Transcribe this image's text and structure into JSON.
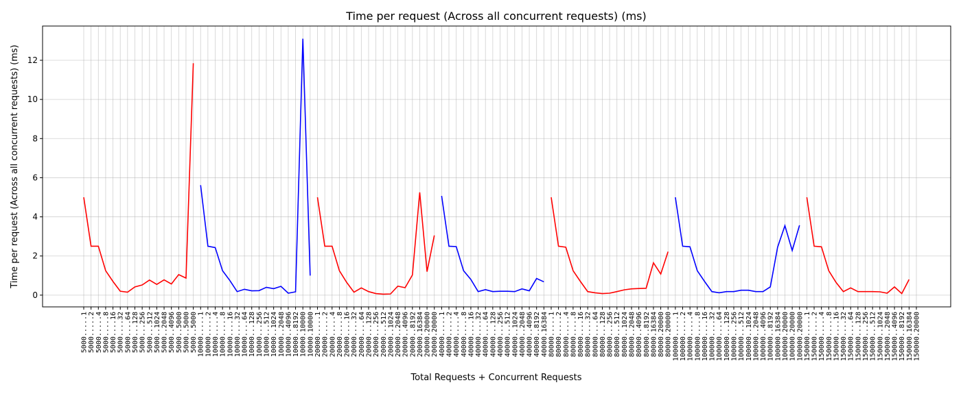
{
  "chart_data": {
    "type": "line",
    "title": "Time per request (Across all concurrent requests) (ms)",
    "x_label": "Total Requests + Concurrent Requests",
    "y_label": "Time per request (Across all concurrent requests) (ms)",
    "categories": [
      "5000.....1",
      "5000.....2",
      "5000.....4",
      "5000.....8",
      "5000....16",
      "5000....32",
      "5000....64",
      "5000...128",
      "5000...256",
      "5000...512",
      "5000..1024",
      "5000..2048",
      "5000..4096",
      "5000..5000",
      "5000..5000",
      "5000..5000",
      "10000.....1",
      "10000.....2",
      "10000.....4",
      "10000.....8",
      "10000....16",
      "10000....32",
      "10000....64",
      "10000...128",
      "10000...256",
      "10000...512",
      "10000..1024",
      "10000..2048",
      "10000..4096",
      "10000..8192",
      "10000.10000",
      "10000.10000",
      "20000.....1",
      "20000.....2",
      "20000.....4",
      "20000.....8",
      "20000....16",
      "20000....32",
      "20000....64",
      "20000...128",
      "20000...256",
      "20000...512",
      "20000..1024",
      "20000..2048",
      "20000..4096",
      "20000..8192",
      "20000.16384",
      "20000.20000",
      "20000.20000",
      "40000.....1",
      "40000.....2",
      "40000.....4",
      "40000.....8",
      "40000....16",
      "40000....32",
      "40000....64",
      "40000...128",
      "40000...256",
      "40000...512",
      "40000..1024",
      "40000..2048",
      "40000..4096",
      "40000..8192",
      "40000.16384",
      "80000.....1",
      "80000.....2",
      "80000.....4",
      "80000.....8",
      "80000....16",
      "80000....32",
      "80000....64",
      "80000...128",
      "80000...256",
      "80000...512",
      "80000..1024",
      "80000..2048",
      "80000..4096",
      "80000..8192",
      "80000.16384",
      "80000.20000",
      "80000.20000",
      "100000.....1",
      "100000.....2",
      "100000.....4",
      "100000.....8",
      "100000....16",
      "100000....32",
      "100000....64",
      "100000...128",
      "100000...256",
      "100000...512",
      "100000..1024",
      "100000..2048",
      "100000..4096",
      "100000..8192",
      "100000.16384",
      "100000.20000",
      "100000.20000",
      "100000.20000",
      "150000.....1",
      "150000.....2",
      "150000.....4",
      "150000.....8",
      "150000....16",
      "150000....32",
      "150000....64",
      "150000...128",
      "150000...256",
      "150000...512",
      "150000..1024",
      "150000..2048",
      "150000..4096",
      "150000..8192",
      "150000.16384",
      "150000.20000"
    ],
    "series": [
      {
        "color": "#ff0000",
        "values": [
          5.0,
          2.5,
          2.5,
          1.25,
          0.7,
          0.2,
          0.15,
          0.42,
          0.52,
          0.77,
          0.55,
          0.78,
          0.57,
          1.05,
          0.87,
          11.85,
          null,
          null,
          null,
          null,
          null,
          null,
          null,
          null,
          null,
          null,
          null,
          null,
          null,
          null,
          null,
          null,
          5.0,
          2.5,
          2.5,
          1.25,
          0.65,
          0.15,
          0.37,
          0.18,
          0.08,
          0.05,
          0.06,
          0.46,
          0.38,
          1.03,
          5.25,
          1.2,
          3.05,
          null,
          null,
          null,
          null,
          null,
          null,
          null,
          null,
          null,
          null,
          null,
          null,
          null,
          null,
          null,
          5.0,
          2.5,
          2.45,
          1.25,
          0.7,
          0.18,
          0.12,
          0.08,
          0.1,
          0.18,
          0.27,
          0.32,
          0.34,
          0.35,
          1.65,
          1.08,
          2.22,
          null,
          null,
          null,
          null,
          null,
          null,
          null,
          null,
          null,
          null,
          null,
          null,
          null,
          null,
          null,
          null,
          null,
          null,
          5.0,
          2.5,
          2.47,
          1.25,
          0.65,
          0.18,
          0.37,
          0.18,
          0.18,
          0.18,
          0.17,
          0.1,
          0.42,
          0.08,
          0.8,
          null
        ]
      },
      {
        "color": "#0000ff",
        "values": [
          null,
          null,
          null,
          null,
          null,
          null,
          null,
          null,
          null,
          null,
          null,
          null,
          null,
          null,
          null,
          null,
          5.62,
          2.5,
          2.43,
          1.25,
          0.75,
          0.18,
          0.3,
          0.22,
          0.23,
          0.4,
          0.33,
          0.45,
          0.1,
          0.17,
          13.1,
          1.0,
          null,
          null,
          null,
          null,
          null,
          null,
          null,
          null,
          null,
          null,
          null,
          null,
          null,
          null,
          null,
          null,
          null,
          5.07,
          2.5,
          2.48,
          1.25,
          0.8,
          0.18,
          0.28,
          0.18,
          0.2,
          0.2,
          0.18,
          0.32,
          0.22,
          0.85,
          0.68,
          null,
          null,
          null,
          null,
          null,
          null,
          null,
          null,
          null,
          null,
          null,
          null,
          null,
          null,
          null,
          null,
          null,
          5.0,
          2.5,
          2.47,
          1.25,
          0.7,
          0.18,
          0.12,
          0.18,
          0.18,
          0.25,
          0.25,
          0.18,
          0.18,
          0.42,
          2.45,
          3.55,
          2.28,
          3.57,
          null,
          null,
          null,
          null,
          null,
          null,
          null,
          null,
          null,
          null,
          null,
          null,
          null,
          null,
          null,
          null
        ]
      }
    ],
    "ylim": [
      -0.6,
      13.75
    ],
    "yticks": [
      0,
      2,
      4,
      6,
      8,
      10,
      12
    ],
    "grid": true
  }
}
